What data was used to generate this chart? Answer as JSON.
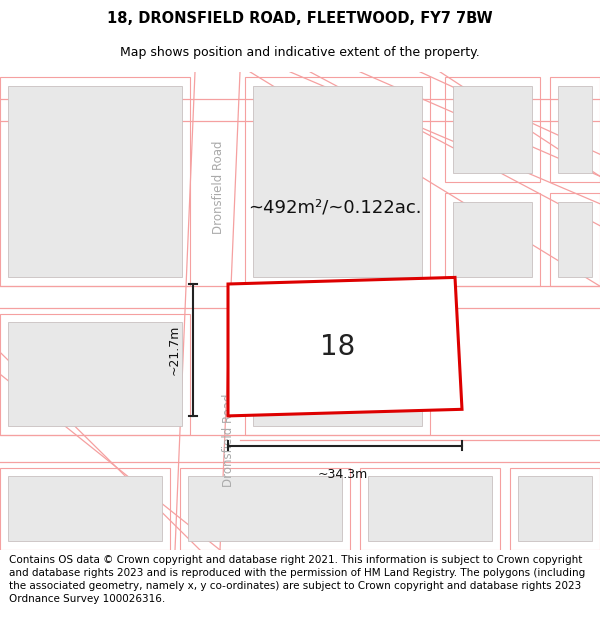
{
  "title_line1": "18, DRONSFIELD ROAD, FLEETWOOD, FY7 7BW",
  "title_line2": "Map shows position and indicative extent of the property.",
  "area_text": "~492m²/~0.122ac.",
  "property_number": "18",
  "dim_width": "~34.3m",
  "dim_height": "~21.7m",
  "road_label": "Dronsfield Road",
  "footer_text": "Contains OS data © Crown copyright and database right 2021. This information is subject to Crown copyright and database rights 2023 and is reproduced with the permission of HM Land Registry. The polygons (including the associated geometry, namely x, y co-ordinates) are subject to Crown copyright and database rights 2023 Ordnance Survey 100026316.",
  "background_color": "#ffffff",
  "map_bg": "#ffffff",
  "building_fill": "#e8e8e8",
  "building_edge": "#c8c0c0",
  "road_line_color": "#f5a0a0",
  "property_edge": "#dd0000",
  "property_fill": "#ffffff",
  "dim_line_color": "#222222",
  "title_fontsize": 10.5,
  "subtitle_fontsize": 9,
  "area_fontsize": 13,
  "number_fontsize": 20,
  "footer_fontsize": 7.5,
  "road_label_fontsize": 8.5,
  "road_label_color": "#aaaaaa"
}
